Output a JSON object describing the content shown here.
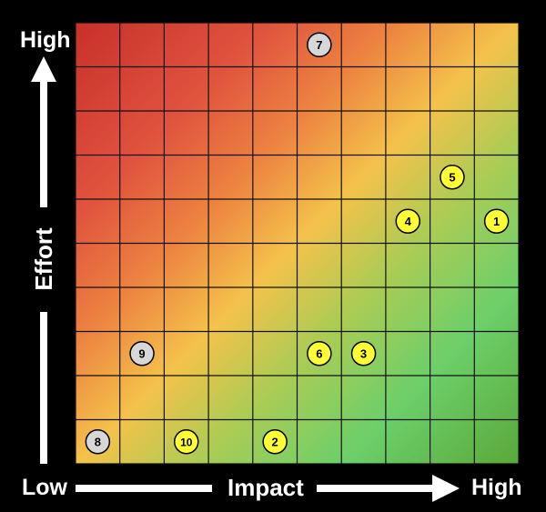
{
  "chart_data": {
    "type": "scatter",
    "xlabel": "Impact",
    "ylabel": "Effort",
    "x_range_labels": {
      "low": "Low",
      "high": "High"
    },
    "y_range_labels": {
      "high": "High"
    },
    "grid": {
      "columns": 10,
      "rows": 10,
      "on": true
    },
    "xlim": [
      0,
      10
    ],
    "ylim": [
      0,
      10
    ],
    "gradient": {
      "high_effort_low_impact": "#c8302a",
      "mid": "#f4c24a",
      "low_effort_high_impact": "#5aa83a",
      "green_zone": "#6ccf6a",
      "red_zone": "#e0533e"
    },
    "colors": {
      "marker_yellow": "#ffff33",
      "marker_gray": "#d7d7d7",
      "background": "#000000",
      "grid_line": "#111111"
    },
    "points": [
      {
        "label": "1",
        "x": 9.5,
        "y": 5.5,
        "color": "yellow"
      },
      {
        "label": "2",
        "x": 4.5,
        "y": 0.5,
        "color": "yellow"
      },
      {
        "label": "3",
        "x": 6.5,
        "y": 2.5,
        "color": "yellow"
      },
      {
        "label": "4",
        "x": 7.5,
        "y": 5.5,
        "color": "yellow"
      },
      {
        "label": "5",
        "x": 8.5,
        "y": 6.5,
        "color": "yellow"
      },
      {
        "label": "6",
        "x": 5.5,
        "y": 2.5,
        "color": "yellow"
      },
      {
        "label": "7",
        "x": 5.5,
        "y": 9.5,
        "color": "gray"
      },
      {
        "label": "8",
        "x": 0.5,
        "y": 0.5,
        "color": "gray"
      },
      {
        "label": "9",
        "x": 1.5,
        "y": 2.5,
        "color": "gray"
      },
      {
        "label": "10",
        "x": 2.5,
        "y": 0.5,
        "color": "yellow"
      }
    ]
  }
}
